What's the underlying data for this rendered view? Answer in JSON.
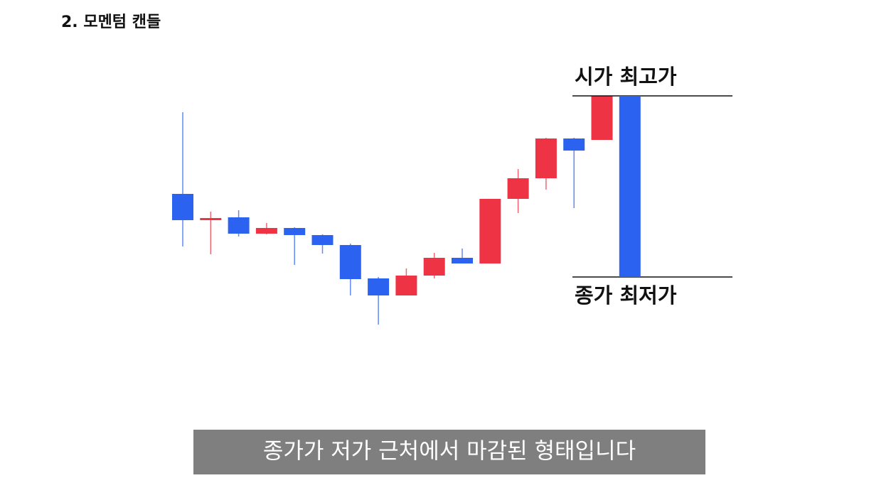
{
  "chart_data": {
    "type": "candlestick",
    "title": "2. 모멘텀 캔들",
    "caption": "종가가 저가 근처에서 마감된 형태입니다",
    "annotations": [
      "시가 최고가",
      "종가 최저가"
    ],
    "ylim": [
      0,
      340
    ],
    "up_color": "#ee3344",
    "down_color": "#2b63f0",
    "open": [
      197,
      160,
      164,
      141,
      149,
      139,
      125,
      78,
      54,
      82,
      107,
      99,
      190,
      219,
      275,
      273,
      335
    ],
    "high": [
      312,
      172,
      174,
      156,
      150,
      140,
      127,
      80,
      92,
      114,
      120,
      190,
      232,
      276,
      276,
      335,
      335
    ],
    "low": [
      123,
      112,
      137,
      140,
      97,
      113,
      54,
      13,
      54,
      78,
      99,
      99,
      170,
      203,
      177,
      273,
      80
    ],
    "close": [
      160,
      163,
      141,
      149,
      139,
      125,
      77,
      54,
      82,
      107,
      99,
      190,
      219,
      275,
      258,
      335,
      80
    ]
  }
}
